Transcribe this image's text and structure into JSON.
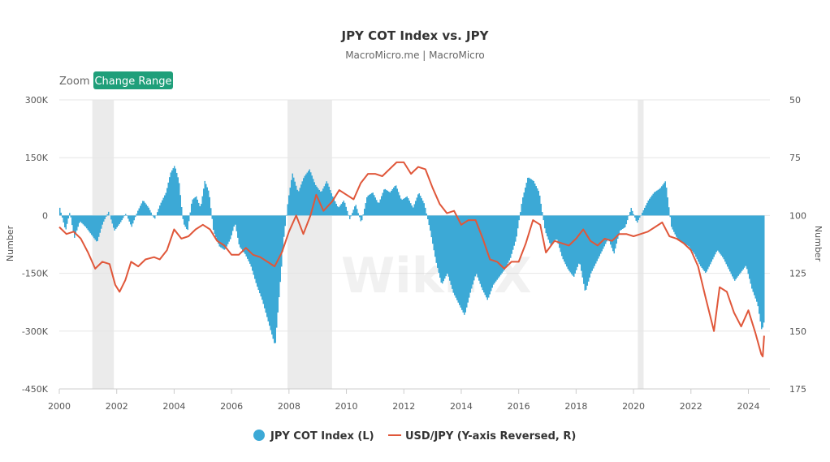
{
  "chart_data": {
    "type": "bar+line",
    "title": "JPY COT Index vs. JPY",
    "subtitle": "MacroMicro.me | MacroMicro",
    "zoom_label": "Zoom",
    "zoom_button": "Change Range",
    "left_axis": {
      "title": "Number",
      "range": [
        -450000,
        300000
      ],
      "ticks": [
        300000,
        150000,
        0,
        -150000,
        -300000,
        -450000
      ],
      "tick_labels": [
        "300K",
        "150K",
        "0",
        "-150K",
        "-300K",
        "-450K"
      ]
    },
    "right_axis": {
      "title": "Number",
      "reversed": true,
      "range": [
        50,
        175
      ],
      "ticks": [
        50,
        75,
        100,
        125,
        150,
        175
      ],
      "tick_labels": [
        "50",
        "75",
        "100",
        "125",
        "150",
        "175"
      ]
    },
    "x_axis": {
      "range": [
        2000.0,
        2024.75
      ],
      "ticks": [
        2000,
        2002,
        2004,
        2006,
        2008,
        2010,
        2012,
        2014,
        2016,
        2018,
        2020,
        2022,
        2024
      ],
      "tick_labels": [
        "2000",
        "2002",
        "2004",
        "2006",
        "2008",
        "2010",
        "2012",
        "2014",
        "2016",
        "2018",
        "2020",
        "2022",
        "2024"
      ]
    },
    "recession_bands": [
      [
        2001.15,
        2001.9
      ],
      [
        2007.95,
        2009.5
      ],
      [
        2020.15,
        2020.35
      ]
    ],
    "series": [
      {
        "name": "JPY COT Index (L)",
        "type": "area",
        "color": "#3ca9d6",
        "points": [
          [
            2000.0,
            20000
          ],
          [
            2000.2,
            -40000
          ],
          [
            2000.35,
            10000
          ],
          [
            2000.5,
            -60000
          ],
          [
            2000.7,
            -15000
          ],
          [
            2000.9,
            -30000
          ],
          [
            2001.1,
            -50000
          ],
          [
            2001.3,
            -70000
          ],
          [
            2001.5,
            -20000
          ],
          [
            2001.7,
            10000
          ],
          [
            2001.9,
            -40000
          ],
          [
            2002.1,
            -20000
          ],
          [
            2002.3,
            5000
          ],
          [
            2002.5,
            -30000
          ],
          [
            2002.7,
            10000
          ],
          [
            2002.9,
            40000
          ],
          [
            2003.1,
            20000
          ],
          [
            2003.3,
            -10000
          ],
          [
            2003.5,
            30000
          ],
          [
            2003.7,
            60000
          ],
          [
            2003.85,
            110000
          ],
          [
            2004.0,
            130000
          ],
          [
            2004.15,
            90000
          ],
          [
            2004.3,
            -20000
          ],
          [
            2004.45,
            -40000
          ],
          [
            2004.6,
            40000
          ],
          [
            2004.75,
            50000
          ],
          [
            2004.9,
            20000
          ],
          [
            2005.05,
            90000
          ],
          [
            2005.2,
            60000
          ],
          [
            2005.35,
            -40000
          ],
          [
            2005.55,
            -80000
          ],
          [
            2005.75,
            -90000
          ],
          [
            2005.95,
            -60000
          ],
          [
            2006.1,
            -20000
          ],
          [
            2006.25,
            -80000
          ],
          [
            2006.45,
            -100000
          ],
          [
            2006.65,
            -130000
          ],
          [
            2006.85,
            -180000
          ],
          [
            2007.05,
            -220000
          ],
          [
            2007.2,
            -260000
          ],
          [
            2007.35,
            -300000
          ],
          [
            2007.5,
            -340000
          ],
          [
            2007.65,
            -200000
          ],
          [
            2007.8,
            -60000
          ],
          [
            2007.95,
            40000
          ],
          [
            2008.1,
            110000
          ],
          [
            2008.3,
            60000
          ],
          [
            2008.5,
            100000
          ],
          [
            2008.7,
            120000
          ],
          [
            2008.9,
            80000
          ],
          [
            2009.1,
            60000
          ],
          [
            2009.3,
            90000
          ],
          [
            2009.5,
            50000
          ],
          [
            2009.7,
            20000
          ],
          [
            2009.9,
            40000
          ],
          [
            2010.1,
            -10000
          ],
          [
            2010.3,
            30000
          ],
          [
            2010.5,
            -20000
          ],
          [
            2010.7,
            50000
          ],
          [
            2010.9,
            60000
          ],
          [
            2011.1,
            30000
          ],
          [
            2011.3,
            70000
          ],
          [
            2011.5,
            60000
          ],
          [
            2011.7,
            80000
          ],
          [
            2011.9,
            40000
          ],
          [
            2012.1,
            50000
          ],
          [
            2012.3,
            20000
          ],
          [
            2012.5,
            60000
          ],
          [
            2012.7,
            30000
          ],
          [
            2012.9,
            -40000
          ],
          [
            2013.1,
            -120000
          ],
          [
            2013.3,
            -180000
          ],
          [
            2013.5,
            -150000
          ],
          [
            2013.7,
            -200000
          ],
          [
            2013.9,
            -230000
          ],
          [
            2014.1,
            -260000
          ],
          [
            2014.3,
            -200000
          ],
          [
            2014.5,
            -150000
          ],
          [
            2014.7,
            -190000
          ],
          [
            2014.9,
            -220000
          ],
          [
            2015.1,
            -180000
          ],
          [
            2015.3,
            -160000
          ],
          [
            2015.5,
            -140000
          ],
          [
            2015.7,
            -110000
          ],
          [
            2015.9,
            -60000
          ],
          [
            2016.1,
            40000
          ],
          [
            2016.3,
            100000
          ],
          [
            2016.5,
            90000
          ],
          [
            2016.7,
            60000
          ],
          [
            2016.9,
            -40000
          ],
          [
            2017.1,
            -80000
          ],
          [
            2017.3,
            -60000
          ],
          [
            2017.5,
            -110000
          ],
          [
            2017.7,
            -140000
          ],
          [
            2017.9,
            -160000
          ],
          [
            2018.1,
            -120000
          ],
          [
            2018.3,
            -200000
          ],
          [
            2018.5,
            -150000
          ],
          [
            2018.7,
            -120000
          ],
          [
            2018.9,
            -90000
          ],
          [
            2019.1,
            -60000
          ],
          [
            2019.3,
            -100000
          ],
          [
            2019.5,
            -40000
          ],
          [
            2019.7,
            -30000
          ],
          [
            2019.9,
            20000
          ],
          [
            2020.1,
            -20000
          ],
          [
            2020.3,
            10000
          ],
          [
            2020.5,
            40000
          ],
          [
            2020.7,
            60000
          ],
          [
            2020.9,
            70000
          ],
          [
            2021.1,
            90000
          ],
          [
            2021.3,
            -30000
          ],
          [
            2021.5,
            -60000
          ],
          [
            2021.7,
            -70000
          ],
          [
            2021.9,
            -80000
          ],
          [
            2022.1,
            -100000
          ],
          [
            2022.3,
            -130000
          ],
          [
            2022.5,
            -150000
          ],
          [
            2022.7,
            -120000
          ],
          [
            2022.9,
            -90000
          ],
          [
            2023.1,
            -110000
          ],
          [
            2023.3,
            -140000
          ],
          [
            2023.5,
            -170000
          ],
          [
            2023.7,
            -150000
          ],
          [
            2023.9,
            -130000
          ],
          [
            2024.1,
            -190000
          ],
          [
            2024.3,
            -230000
          ],
          [
            2024.45,
            -300000
          ],
          [
            2024.55,
            -270000
          ]
        ]
      },
      {
        "name": "USD/JPY (Y-axis Reversed, R)",
        "type": "line",
        "color": "#e0573a",
        "points": [
          [
            2000.0,
            105
          ],
          [
            2000.25,
            108
          ],
          [
            2000.5,
            107
          ],
          [
            2000.75,
            110
          ],
          [
            2001.0,
            116
          ],
          [
            2001.25,
            123
          ],
          [
            2001.5,
            120
          ],
          [
            2001.75,
            121
          ],
          [
            2001.95,
            130
          ],
          [
            2002.1,
            133
          ],
          [
            2002.3,
            128
          ],
          [
            2002.5,
            120
          ],
          [
            2002.75,
            122
          ],
          [
            2003.0,
            119
          ],
          [
            2003.3,
            118
          ],
          [
            2003.5,
            119
          ],
          [
            2003.75,
            115
          ],
          [
            2004.0,
            106
          ],
          [
            2004.25,
            110
          ],
          [
            2004.5,
            109
          ],
          [
            2004.75,
            106
          ],
          [
            2005.0,
            104
          ],
          [
            2005.25,
            106
          ],
          [
            2005.5,
            111
          ],
          [
            2005.75,
            113
          ],
          [
            2006.0,
            117
          ],
          [
            2006.25,
            117
          ],
          [
            2006.5,
            114
          ],
          [
            2006.75,
            117
          ],
          [
            2007.0,
            118
          ],
          [
            2007.25,
            120
          ],
          [
            2007.5,
            122
          ],
          [
            2007.75,
            116
          ],
          [
            2008.0,
            107
          ],
          [
            2008.25,
            100
          ],
          [
            2008.5,
            108
          ],
          [
            2008.75,
            100
          ],
          [
            2008.95,
            91
          ],
          [
            2009.2,
            98
          ],
          [
            2009.5,
            94
          ],
          [
            2009.75,
            89
          ],
          [
            2010.0,
            91
          ],
          [
            2010.25,
            93
          ],
          [
            2010.5,
            86
          ],
          [
            2010.75,
            82
          ],
          [
            2011.0,
            82
          ],
          [
            2011.25,
            83
          ],
          [
            2011.5,
            80
          ],
          [
            2011.75,
            77
          ],
          [
            2012.0,
            77
          ],
          [
            2012.25,
            82
          ],
          [
            2012.5,
            79
          ],
          [
            2012.75,
            80
          ],
          [
            2013.0,
            88
          ],
          [
            2013.25,
            95
          ],
          [
            2013.5,
            99
          ],
          [
            2013.75,
            98
          ],
          [
            2014.0,
            104
          ],
          [
            2014.25,
            102
          ],
          [
            2014.5,
            102
          ],
          [
            2014.75,
            110
          ],
          [
            2015.0,
            119
          ],
          [
            2015.25,
            120
          ],
          [
            2015.5,
            123
          ],
          [
            2015.75,
            120
          ],
          [
            2016.0,
            120
          ],
          [
            2016.25,
            112
          ],
          [
            2016.5,
            102
          ],
          [
            2016.75,
            104
          ],
          [
            2016.95,
            116
          ],
          [
            2017.25,
            111
          ],
          [
            2017.5,
            112
          ],
          [
            2017.75,
            113
          ],
          [
            2018.0,
            110
          ],
          [
            2018.25,
            106
          ],
          [
            2018.5,
            111
          ],
          [
            2018.75,
            113
          ],
          [
            2019.0,
            110
          ],
          [
            2019.25,
            111
          ],
          [
            2019.5,
            108
          ],
          [
            2019.75,
            108
          ],
          [
            2020.0,
            109
          ],
          [
            2020.25,
            108
          ],
          [
            2020.5,
            107
          ],
          [
            2020.75,
            105
          ],
          [
            2021.0,
            103
          ],
          [
            2021.25,
            109
          ],
          [
            2021.5,
            110
          ],
          [
            2021.75,
            112
          ],
          [
            2022.0,
            115
          ],
          [
            2022.25,
            122
          ],
          [
            2022.5,
            135
          ],
          [
            2022.8,
            150
          ],
          [
            2023.0,
            131
          ],
          [
            2023.25,
            133
          ],
          [
            2023.5,
            142
          ],
          [
            2023.75,
            148
          ],
          [
            2024.0,
            141
          ],
          [
            2024.25,
            151
          ],
          [
            2024.45,
            160
          ],
          [
            2024.5,
            161
          ],
          [
            2024.55,
            152
          ]
        ]
      }
    ],
    "legend": [
      "JPY COT Index (L)",
      "USD/JPY (Y-axis Reversed, R)"
    ],
    "watermark": "WikiFX"
  }
}
